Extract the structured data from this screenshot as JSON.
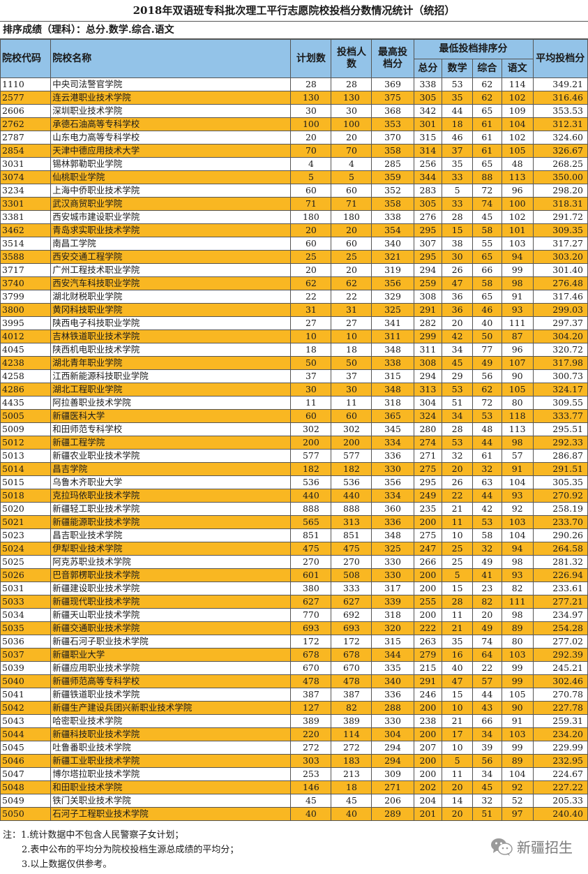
{
  "title": "2018年双语班专科批次理工平行志愿院校投档分数情况统计（统招）",
  "subtitle": "排序成绩（理科）：总分.数学.综合.语文",
  "headers": {
    "code": "院校代码",
    "name": "院校名称",
    "plan": "计划数",
    "admitted": "投档人数",
    "max": "最高投档分",
    "min_group": "最低投档排序分",
    "total": "总分",
    "math": "数学",
    "comp": "综合",
    "chinese": "语文",
    "avg": "平均投档分"
  },
  "rows": [
    [
      "1110",
      "中央司法警官学院",
      "28",
      "28",
      "369",
      "338",
      "53",
      "62",
      "114",
      "349.21"
    ],
    [
      "2577",
      "连云港职业技术学院",
      "130",
      "130",
      "375",
      "305",
      "35",
      "62",
      "102",
      "316.46"
    ],
    [
      "2606",
      "深圳职业技术学院",
      "30",
      "30",
      "368",
      "342",
      "44",
      "65",
      "109",
      "353.53"
    ],
    [
      "2762",
      "承德石油高等专科学校",
      "100",
      "100",
      "353",
      "301",
      "18",
      "61",
      "104",
      "312.31"
    ],
    [
      "2787",
      "山东电力高等专科学校",
      "20",
      "20",
      "370",
      "315",
      "46",
      "61",
      "102",
      "324.60"
    ],
    [
      "2854",
      "天津中德应用技术大学",
      "70",
      "70",
      "358",
      "314",
      "37",
      "61",
      "105",
      "326.67"
    ],
    [
      "3031",
      "锡林郭勒职业学院",
      "4",
      "4",
      "285",
      "256",
      "35",
      "65",
      "48",
      "268.25"
    ],
    [
      "3074",
      "仙桃职业学院",
      "5",
      "5",
      "359",
      "344",
      "33",
      "88",
      "113",
      "350.00"
    ],
    [
      "3234",
      "上海中侨职业技术学院",
      "60",
      "60",
      "352",
      "283",
      "5",
      "72",
      "96",
      "298.20"
    ],
    [
      "3301",
      "武汉商贸职业学院",
      "71",
      "71",
      "358",
      "305",
      "33",
      "74",
      "100",
      "318.31"
    ],
    [
      "3381",
      "西安城市建设职业学院",
      "180",
      "180",
      "338",
      "276",
      "28",
      "45",
      "102",
      "291.72"
    ],
    [
      "3462",
      "青岛求实职业技术学院",
      "20",
      "20",
      "354",
      "295",
      "15",
      "58",
      "101",
      "309.35"
    ],
    [
      "3514",
      "南昌工学院",
      "60",
      "60",
      "340",
      "307",
      "38",
      "55",
      "103",
      "317.27"
    ],
    [
      "3588",
      "西安交通工程学院",
      "25",
      "25",
      "321",
      "295",
      "30",
      "65",
      "94",
      "303.20"
    ],
    [
      "3717",
      "广州工程技术职业学院",
      "20",
      "20",
      "319",
      "294",
      "26",
      "66",
      "99",
      "301.40"
    ],
    [
      "3740",
      "西安汽车科技职业学院",
      "62",
      "62",
      "356",
      "259",
      "47",
      "58",
      "98",
      "276.48"
    ],
    [
      "3799",
      "湖北财税职业学院",
      "22",
      "22",
      "329",
      "308",
      "36",
      "65",
      "91",
      "317.46"
    ],
    [
      "3800",
      "黄冈科技职业学院",
      "31",
      "31",
      "325",
      "291",
      "36",
      "46",
      "93",
      "299.03"
    ],
    [
      "3995",
      "陕西电子科技职业学院",
      "27",
      "27",
      "341",
      "282",
      "20",
      "40",
      "111",
      "297.37"
    ],
    [
      "4012",
      "吉林铁道职业技术学院",
      "10",
      "10",
      "311",
      "299",
      "42",
      "50",
      "87",
      "304.20"
    ],
    [
      "4045",
      "陕西机电职业技术学院",
      "18",
      "18",
      "348",
      "311",
      "34",
      "77",
      "96",
      "320.72"
    ],
    [
      "4238",
      "湖北青年职业学院",
      "50",
      "50",
      "338",
      "308",
      "45",
      "49",
      "107",
      "317.98"
    ],
    [
      "4258",
      "江西新能源科技职业学院",
      "37",
      "37",
      "315",
      "294",
      "29",
      "56",
      "90",
      "300.73"
    ],
    [
      "4286",
      "湖北工程职业学院",
      "30",
      "30",
      "348",
      "313",
      "53",
      "62",
      "105",
      "324.17"
    ],
    [
      "4435",
      "阿拉善职业技术学院",
      "11",
      "11",
      "318",
      "304",
      "51",
      "72",
      "80",
      "309.55"
    ],
    [
      "5005",
      "新疆医科大学",
      "60",
      "60",
      "365",
      "324",
      "34",
      "53",
      "118",
      "333.77"
    ],
    [
      "5009",
      "和田师范专科学校",
      "302",
      "302",
      "345",
      "280",
      "28",
      "48",
      "113",
      "295.51"
    ],
    [
      "5012",
      "新疆工程学院",
      "200",
      "200",
      "334",
      "274",
      "53",
      "44",
      "98",
      "292.33"
    ],
    [
      "5013",
      "新疆农业职业技术学院",
      "577",
      "577",
      "336",
      "271",
      "32",
      "61",
      "57",
      "286.87"
    ],
    [
      "5014",
      "昌吉学院",
      "182",
      "182",
      "330",
      "275",
      "20",
      "32",
      "91",
      "291.51"
    ],
    [
      "5015",
      "乌鲁木齐职业大学",
      "536",
      "536",
      "356",
      "295",
      "26",
      "63",
      "104",
      "305.35"
    ],
    [
      "5018",
      "克拉玛依职业技术学院",
      "440",
      "440",
      "334",
      "249",
      "22",
      "44",
      "93",
      "270.92"
    ],
    [
      "5020",
      "新疆轻工职业技术学院",
      "888",
      "888",
      "360",
      "235",
      "21",
      "42",
      "92",
      "258.19"
    ],
    [
      "5021",
      "新疆能源职业技术学院",
      "565",
      "313",
      "336",
      "200",
      "11",
      "53",
      "103",
      "233.70"
    ],
    [
      "5023",
      "昌吉职业技术学院",
      "851",
      "851",
      "348",
      "275",
      "10",
      "58",
      "104",
      "290.26"
    ],
    [
      "5024",
      "伊犁职业技术学院",
      "475",
      "475",
      "325",
      "247",
      "25",
      "32",
      "94",
      "264.58"
    ],
    [
      "5025",
      "阿克苏职业技术学院",
      "270",
      "270",
      "330",
      "266",
      "25",
      "49",
      "98",
      "281.32"
    ],
    [
      "5026",
      "巴音郭楞职业技术学院",
      "601",
      "508",
      "330",
      "200",
      "5",
      "41",
      "93",
      "226.94"
    ],
    [
      "5031",
      "新疆建设职业技术学院",
      "380",
      "333",
      "317",
      "200",
      "15",
      "23",
      "82",
      "233.61"
    ],
    [
      "5033",
      "新疆现代职业技术学院",
      "627",
      "627",
      "339",
      "255",
      "28",
      "82",
      "111",
      "277.21"
    ],
    [
      "5034",
      "新疆天山职业技术学院",
      "770",
      "692",
      "318",
      "200",
      "11",
      "20",
      "98",
      "234.97"
    ],
    [
      "5035",
      "新疆交通职业技术学院",
      "693",
      "693",
      "320",
      "222",
      "21",
      "49",
      "89",
      "254.28"
    ],
    [
      "5036",
      "新疆石河子职业技术学院",
      "172",
      "172",
      "315",
      "263",
      "35",
      "74",
      "80",
      "277.02"
    ],
    [
      "5037",
      "新疆职业大学",
      "678",
      "678",
      "344",
      "279",
      "16",
      "64",
      "103",
      "292.39"
    ],
    [
      "5039",
      "新疆应用职业技术学院",
      "670",
      "670",
      "335",
      "215",
      "40",
      "22",
      "99",
      "245.21"
    ],
    [
      "5040",
      "新疆师范高等专科学校",
      "478",
      "478",
      "340",
      "291",
      "47",
      "57",
      "99",
      "302.46"
    ],
    [
      "5041",
      "新疆铁道职业技术学院",
      "387",
      "387",
      "336",
      "246",
      "15",
      "44",
      "105",
      "270.78"
    ],
    [
      "5042",
      "新疆生产建设兵团兴新职业技术学院",
      "127",
      "82",
      "288",
      "200",
      "10",
      "43",
      "90",
      "227.78"
    ],
    [
      "5043",
      "哈密职业技术学院",
      "389",
      "389",
      "330",
      "238",
      "21",
      "66",
      "91",
      "259.31"
    ],
    [
      "5044",
      "新疆科技职业技术学院",
      "220",
      "114",
      "304",
      "200",
      "17",
      "34",
      "103",
      "234.20"
    ],
    [
      "5045",
      "吐鲁番职业技术学院",
      "272",
      "272",
      "294",
      "207",
      "10",
      "39",
      "99",
      "229.99"
    ],
    [
      "5046",
      "新疆工业职业技术学院",
      "303",
      "183",
      "294",
      "200",
      "5",
      "56",
      "89",
      "232.95"
    ],
    [
      "5047",
      "博尔塔拉职业技术学院",
      "253",
      "213",
      "309",
      "200",
      "11",
      "34",
      "104",
      "224.67"
    ],
    [
      "5048",
      "和田职业技术学院",
      "146",
      "18",
      "271",
      "202",
      "20",
      "45",
      "92",
      "227.22"
    ],
    [
      "5049",
      "铁门关职业技术学院",
      "45",
      "45",
      "206",
      "204",
      "14",
      "32",
      "52",
      "205.33"
    ],
    [
      "5050",
      "石河子工程职业技术学院",
      "40",
      "40",
      "289",
      "201",
      "20",
      "51",
      "97",
      "240.40"
    ]
  ],
  "notes": [
    "注：1.统计数据中不包含人民警察子女计划；",
    "2.表中公布的平均分为院校投档生源总成绩的平均分；",
    "3.以上数据仅供参考。"
  ],
  "badge": {
    "icon": "wechat-icon",
    "text": "新疆招生"
  },
  "colors": {
    "header": "#93c3e8",
    "stripe": "#f9b722",
    "border": "#555555"
  }
}
